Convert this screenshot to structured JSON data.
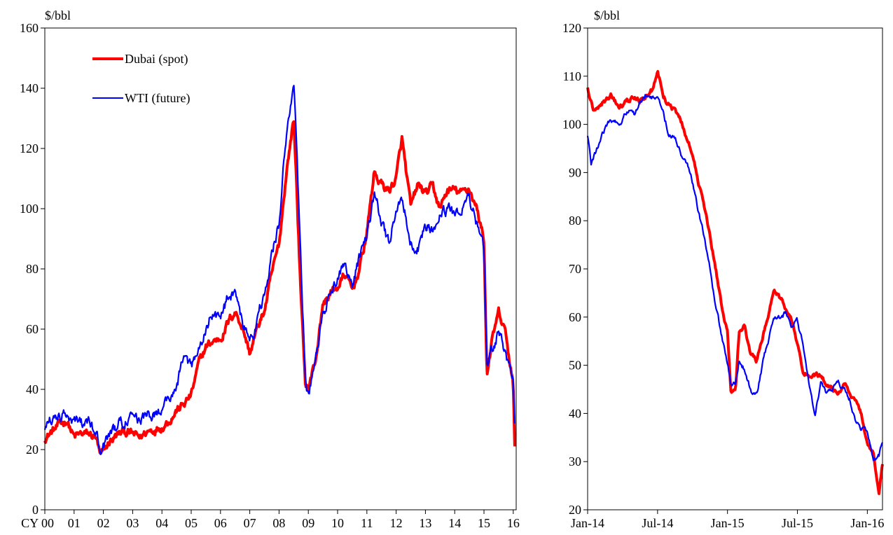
{
  "colors": {
    "dubai": "#ff0000",
    "wti": "#0000ff",
    "axis": "#000000"
  },
  "chart_data": [
    {
      "type": "line",
      "y_unit": "$/bbl",
      "ylim": [
        0,
        160
      ],
      "y_ticks": [
        0,
        20,
        40,
        60,
        80,
        100,
        120,
        140,
        160
      ],
      "xlim": [
        2000,
        2016.1
      ],
      "x_ticks": [
        {
          "x": 2000,
          "label": "CY 00"
        },
        {
          "x": 2001,
          "label": "01"
        },
        {
          "x": 2002,
          "label": "02"
        },
        {
          "x": 2003,
          "label": "03"
        },
        {
          "x": 2004,
          "label": "04"
        },
        {
          "x": 2005,
          "label": "05"
        },
        {
          "x": 2006,
          "label": "06"
        },
        {
          "x": 2007,
          "label": "07"
        },
        {
          "x": 2008,
          "label": "08"
        },
        {
          "x": 2009,
          "label": "09"
        },
        {
          "x": 2010,
          "label": "10"
        },
        {
          "x": 2011,
          "label": "11"
        },
        {
          "x": 2012,
          "label": "12"
        },
        {
          "x": 2013,
          "label": "13"
        },
        {
          "x": 2014,
          "label": "14"
        },
        {
          "x": 2015,
          "label": "15"
        },
        {
          "x": 2016,
          "label": "16"
        }
      ],
      "grid": false,
      "legend": "top-left",
      "series": [
        {
          "name": "Dubai (spot)",
          "color": "#ff0000",
          "x": [
            2000.0,
            2000.25,
            2000.5,
            2000.75,
            2001.0,
            2001.25,
            2001.5,
            2001.75,
            2001.9,
            2002.0,
            2002.25,
            2002.5,
            2002.75,
            2003.0,
            2003.25,
            2003.5,
            2003.75,
            2004.0,
            2004.25,
            2004.5,
            2004.75,
            2005.0,
            2005.25,
            2005.5,
            2005.75,
            2006.0,
            2006.25,
            2006.5,
            2006.75,
            2007.0,
            2007.25,
            2007.5,
            2007.75,
            2008.0,
            2008.25,
            2008.5,
            2008.6,
            2008.75,
            2008.9,
            2009.0,
            2009.25,
            2009.5,
            2009.75,
            2010.0,
            2010.25,
            2010.5,
            2010.75,
            2011.0,
            2011.25,
            2011.5,
            2011.75,
            2012.0,
            2012.2,
            2012.5,
            2012.75,
            2013.0,
            2013.25,
            2013.5,
            2013.75,
            2014.0,
            2014.25,
            2014.5,
            2014.75,
            2015.0,
            2015.1,
            2015.25,
            2015.5,
            2015.75,
            2016.0,
            2016.05
          ],
          "y": [
            24,
            26,
            28,
            30,
            24,
            25,
            25,
            24,
            17,
            19,
            23,
            25,
            26,
            25,
            24,
            26,
            27,
            28,
            30,
            33,
            35,
            38,
            48,
            54,
            56,
            57,
            62,
            66,
            61,
            52,
            60,
            66,
            78,
            88,
            112,
            130,
            108,
            70,
            42,
            40,
            50,
            68,
            72,
            74,
            78,
            73,
            80,
            92,
            112,
            108,
            106,
            110,
            123,
            100,
            108,
            105,
            107,
            100,
            106,
            106,
            105,
            107,
            100,
            90,
            45,
            55,
            65,
            58,
            40,
            22
          ],
          "jitter": 2.2
        },
        {
          "name": "WTI (future)",
          "color": "#0000ff",
          "x": [
            2000.0,
            2000.25,
            2000.5,
            2000.75,
            2001.0,
            2001.25,
            2001.5,
            2001.75,
            2001.9,
            2002.0,
            2002.25,
            2002.5,
            2002.75,
            2003.0,
            2003.25,
            2003.5,
            2003.75,
            2004.0,
            2004.25,
            2004.5,
            2004.75,
            2005.0,
            2005.25,
            2005.5,
            2005.75,
            2006.0,
            2006.25,
            2006.5,
            2006.75,
            2007.0,
            2007.25,
            2007.5,
            2007.75,
            2008.0,
            2008.25,
            2008.5,
            2008.6,
            2008.75,
            2008.9,
            2009.0,
            2009.25,
            2009.5,
            2009.75,
            2010.0,
            2010.25,
            2010.5,
            2010.75,
            2011.0,
            2011.25,
            2011.5,
            2011.75,
            2012.0,
            2012.2,
            2012.5,
            2012.75,
            2013.0,
            2013.25,
            2013.5,
            2013.75,
            2014.0,
            2014.25,
            2014.5,
            2014.75,
            2015.0,
            2015.1,
            2015.25,
            2015.5,
            2015.75,
            2016.0,
            2016.05
          ],
          "y": [
            28,
            30,
            32,
            33,
            30,
            28,
            28,
            26,
            20,
            21,
            25,
            28,
            30,
            33,
            29,
            31,
            32,
            34,
            37,
            41,
            52,
            47,
            52,
            60,
            66,
            63,
            70,
            73,
            62,
            55,
            63,
            72,
            85,
            95,
            125,
            140,
            120,
            80,
            45,
            38,
            50,
            66,
            72,
            78,
            82,
            76,
            84,
            90,
            105,
            96,
            88,
            100,
            104,
            90,
            88,
            95,
            94,
            98,
            100,
            98,
            101,
            103,
            95,
            85,
            46,
            52,
            60,
            50,
            42,
            30
          ],
          "jitter": 3.0
        }
      ]
    },
    {
      "type": "line",
      "y_unit": "$/bbl",
      "ylim": [
        20,
        120
      ],
      "y_ticks": [
        20,
        30,
        40,
        50,
        60,
        70,
        80,
        90,
        100,
        110,
        120
      ],
      "xlim": [
        0,
        25.3
      ],
      "x_ticks": [
        {
          "x": 0,
          "label": "Jan-14"
        },
        {
          "x": 6,
          "label": "Jul-14"
        },
        {
          "x": 12,
          "label": "Jan-15"
        },
        {
          "x": 18,
          "label": "Jul-15"
        },
        {
          "x": 24,
          "label": "Jan-16"
        }
      ],
      "grid": false,
      "series": [
        {
          "name": "Dubai (spot)",
          "color": "#ff0000",
          "x": [
            0,
            0.5,
            1,
            1.5,
            2,
            2.5,
            3,
            3.5,
            4,
            4.5,
            5,
            5.5,
            6,
            6.5,
            7,
            7.5,
            8,
            8.5,
            9,
            9.5,
            10,
            10.5,
            11,
            11.5,
            12,
            12.3,
            12.7,
            13,
            13.5,
            14,
            14.5,
            15,
            15.5,
            16,
            16.5,
            17,
            17.5,
            18,
            18.5,
            19,
            19.5,
            20,
            20.5,
            21,
            21.5,
            22,
            22.5,
            23,
            23.5,
            24,
            24.5,
            25,
            25.3
          ],
          "y": [
            108,
            103,
            104,
            105,
            106,
            104,
            104,
            105,
            106,
            105,
            106,
            107,
            111,
            106,
            104,
            103,
            101,
            97,
            94,
            88,
            83,
            77,
            70,
            62,
            57,
            44,
            45,
            57,
            58,
            52,
            51,
            56,
            60,
            66,
            64,
            62,
            60,
            54,
            49,
            48,
            48,
            48,
            46,
            45,
            44,
            46,
            44,
            42,
            40,
            33,
            32,
            24,
            30
          ],
          "jitter": 0.8
        },
        {
          "name": "WTI (future)",
          "color": "#0000ff",
          "x": [
            0,
            0.3,
            0.6,
            1,
            1.5,
            2,
            2.5,
            3,
            3.5,
            4,
            4.5,
            5,
            5.5,
            6,
            6.5,
            7,
            7.5,
            8,
            8.5,
            9,
            9.5,
            10,
            10.5,
            11,
            11.5,
            12,
            12.3,
            12.7,
            13,
            13.5,
            14,
            14.5,
            15,
            15.5,
            16,
            16.5,
            17,
            17.5,
            18,
            18.5,
            19,
            19.5,
            20,
            20.5,
            21,
            21.5,
            22,
            22.5,
            23,
            23.5,
            24,
            24.5,
            25,
            25.3
          ],
          "y": [
            98,
            92,
            94,
            96,
            99,
            101,
            100,
            101,
            103,
            102,
            104,
            106,
            105,
            106,
            102,
            98,
            97,
            94,
            92,
            88,
            82,
            77,
            70,
            62,
            56,
            50,
            46,
            46,
            51,
            49,
            45,
            44,
            50,
            55,
            60,
            60,
            61,
            58,
            59,
            54,
            46,
            40,
            46,
            44,
            45,
            46,
            45,
            43,
            39,
            37,
            36,
            30,
            31,
            34
          ],
          "jitter": 0.9
        }
      ]
    }
  ]
}
